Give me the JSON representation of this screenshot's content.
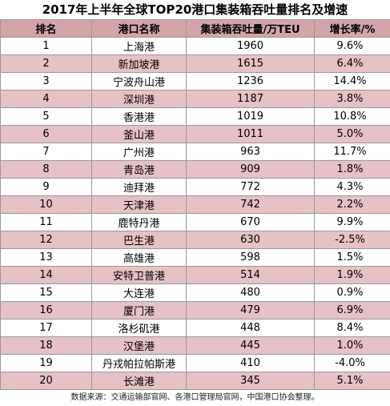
{
  "title": "2017年上半年全球TOP20港口集装箱吞吐量排名及增速",
  "headers": {
    "rank": "排名",
    "port": "港口名称",
    "throughput": "集装箱吞吐量/万TEU",
    "growth": "增长率/%"
  },
  "rows": [
    {
      "rank": "1",
      "port": "上海港",
      "throughput": "1960",
      "growth": "9.6%"
    },
    {
      "rank": "2",
      "port": "新加坡港",
      "throughput": "1615",
      "growth": "6.4%"
    },
    {
      "rank": "3",
      "port": "宁波舟山港",
      "throughput": "1236",
      "growth": "14.4%"
    },
    {
      "rank": "4",
      "port": "深圳港",
      "throughput": "1187",
      "growth": "3.8%"
    },
    {
      "rank": "5",
      "port": "香港港",
      "throughput": "1019",
      "growth": "10.8%"
    },
    {
      "rank": "6",
      "port": "釜山港",
      "throughput": "1011",
      "growth": "5.0%"
    },
    {
      "rank": "7",
      "port": "广州港",
      "throughput": "963",
      "growth": "11.7%"
    },
    {
      "rank": "8",
      "port": "青岛港",
      "throughput": "909",
      "growth": "1.8%"
    },
    {
      "rank": "9",
      "port": "迪拜港",
      "throughput": "772",
      "growth": "4.3%"
    },
    {
      "rank": "10",
      "port": "天津港",
      "throughput": "742",
      "growth": "2.2%"
    },
    {
      "rank": "11",
      "port": "鹿特丹港",
      "throughput": "670",
      "growth": "9.9%"
    },
    {
      "rank": "12",
      "port": "巴生港",
      "throughput": "630",
      "growth": "-2.5%"
    },
    {
      "rank": "13",
      "port": "高雄港",
      "throughput": "598",
      "growth": "1.5%"
    },
    {
      "rank": "14",
      "port": "安特卫普港",
      "throughput": "514",
      "growth": "1.9%"
    },
    {
      "rank": "15",
      "port": "大连港",
      "throughput": "480",
      "growth": "0.9%"
    },
    {
      "rank": "16",
      "port": "厦门港",
      "throughput": "479",
      "growth": "6.9%"
    },
    {
      "rank": "17",
      "port": "洛杉矶港",
      "throughput": "448",
      "growth": "8.4%"
    },
    {
      "rank": "18",
      "port": "汉堡港",
      "throughput": "445",
      "growth": "1.0%"
    },
    {
      "rank": "19",
      "port": "丹戎帕拉帕斯港",
      "throughput": "410",
      "growth": "-4.0%"
    },
    {
      "rank": "20",
      "port": "长滩港",
      "throughput": "345",
      "growth": "5.1%"
    }
  ],
  "source": "数据来源：交通运输部官网、各港口管理局官网，中国港口协会整理。",
  "colors": {
    "header_bg": "#d3a5aa",
    "stripe_bg": "#e6c1c5",
    "border": "#9a9a9a"
  }
}
